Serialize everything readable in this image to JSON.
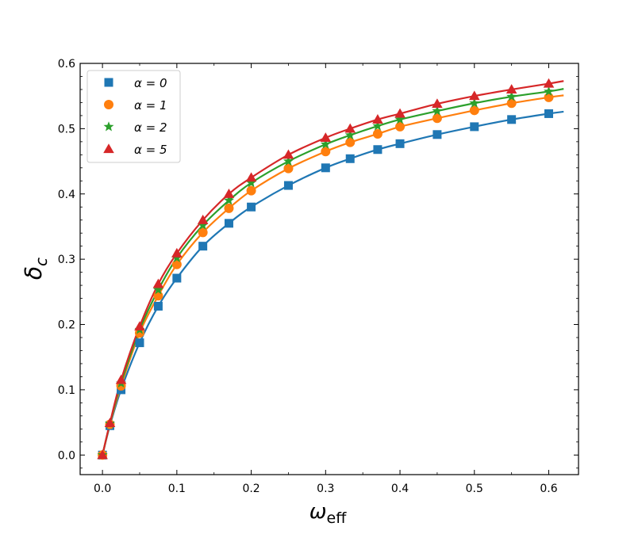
{
  "chart_data": {
    "type": "line",
    "title": "",
    "xlabel": "ω",
    "xlabel_sub": "eff",
    "ylabel": "δ",
    "ylabel_sub": "c",
    "xlim": [
      -0.03,
      0.64
    ],
    "ylim": [
      -0.03,
      0.6
    ],
    "x_ticks": [
      0.0,
      0.1,
      0.2,
      0.3,
      0.4,
      0.5,
      0.6
    ],
    "x_tick_labels": [
      "0.0",
      "0.1",
      "0.2",
      "0.3",
      "0.4",
      "0.5",
      "0.6"
    ],
    "y_ticks": [
      0.0,
      0.1,
      0.2,
      0.3,
      0.4,
      0.5,
      0.6
    ],
    "y_tick_labels": [
      "0.0",
      "0.1",
      "0.2",
      "0.3",
      "0.4",
      "0.5",
      "0.6"
    ],
    "grid": false,
    "legend_position": "top-left",
    "x": [
      0.0,
      0.01,
      0.025,
      0.05,
      0.075,
      0.1,
      0.135,
      0.17,
      0.2,
      0.25,
      0.3,
      0.333,
      0.37,
      0.4,
      0.45,
      0.5,
      0.55,
      0.6
    ],
    "series": [
      {
        "name": "α = 0",
        "color": "#1f77b4",
        "marker": "square",
        "values": [
          0.0,
          0.045,
          0.1,
          0.172,
          0.228,
          0.271,
          0.32,
          0.355,
          0.38,
          0.413,
          0.44,
          0.454,
          0.468,
          0.477,
          0.491,
          0.503,
          0.514,
          0.523
        ],
        "curve_x": [
          0.0,
          0.01,
          0.025,
          0.05,
          0.075,
          0.1,
          0.135,
          0.17,
          0.2,
          0.25,
          0.3,
          0.333,
          0.37,
          0.4,
          0.45,
          0.5,
          0.55,
          0.6,
          0.62
        ],
        "curve_y": [
          0.0,
          0.045,
          0.1,
          0.172,
          0.228,
          0.271,
          0.32,
          0.355,
          0.38,
          0.413,
          0.44,
          0.454,
          0.468,
          0.477,
          0.491,
          0.503,
          0.514,
          0.523,
          0.526
        ]
      },
      {
        "name": "α = 1",
        "color": "#ff7f0e",
        "marker": "circle",
        "values": [
          0.0,
          0.047,
          0.106,
          0.187,
          0.244,
          0.292,
          0.341,
          0.378,
          0.405,
          0.439,
          0.465,
          0.479,
          0.492,
          0.503,
          0.516,
          0.528,
          0.539,
          0.548
        ],
        "curve_x": [
          0.0,
          0.01,
          0.025,
          0.05,
          0.075,
          0.1,
          0.135,
          0.17,
          0.2,
          0.25,
          0.3,
          0.333,
          0.37,
          0.4,
          0.45,
          0.5,
          0.55,
          0.6,
          0.62
        ],
        "curve_y": [
          0.0,
          0.047,
          0.106,
          0.187,
          0.244,
          0.292,
          0.341,
          0.378,
          0.405,
          0.439,
          0.465,
          0.479,
          0.492,
          0.503,
          0.516,
          0.528,
          0.539,
          0.548,
          0.551
        ]
      },
      {
        "name": "α = 2",
        "color": "#2ca02c",
        "marker": "star",
        "values": [
          0.0,
          0.048,
          0.11,
          0.192,
          0.253,
          0.302,
          0.352,
          0.39,
          0.417,
          0.45,
          0.476,
          0.49,
          0.504,
          0.514,
          0.527,
          0.539,
          0.549,
          0.557
        ],
        "curve_x": [
          0.0,
          0.01,
          0.025,
          0.05,
          0.075,
          0.1,
          0.135,
          0.17,
          0.2,
          0.25,
          0.3,
          0.333,
          0.37,
          0.4,
          0.45,
          0.5,
          0.55,
          0.6,
          0.62
        ],
        "curve_y": [
          0.0,
          0.048,
          0.11,
          0.192,
          0.253,
          0.302,
          0.352,
          0.39,
          0.417,
          0.45,
          0.476,
          0.49,
          0.504,
          0.514,
          0.527,
          0.539,
          0.549,
          0.557,
          0.561
        ]
      },
      {
        "name": "α = 5",
        "color": "#d62728",
        "marker": "triangle",
        "values": [
          0.0,
          0.049,
          0.115,
          0.197,
          0.262,
          0.309,
          0.36,
          0.4,
          0.425,
          0.46,
          0.486,
          0.5,
          0.514,
          0.523,
          0.538,
          0.55,
          0.56,
          0.569
        ],
        "curve_x": [
          0.0,
          0.01,
          0.025,
          0.05,
          0.075,
          0.1,
          0.135,
          0.17,
          0.2,
          0.25,
          0.3,
          0.333,
          0.37,
          0.4,
          0.45,
          0.5,
          0.55,
          0.6,
          0.62
        ],
        "curve_y": [
          0.0,
          0.049,
          0.115,
          0.197,
          0.262,
          0.309,
          0.36,
          0.4,
          0.425,
          0.46,
          0.486,
          0.5,
          0.514,
          0.523,
          0.538,
          0.55,
          0.56,
          0.569,
          0.573
        ]
      }
    ]
  }
}
